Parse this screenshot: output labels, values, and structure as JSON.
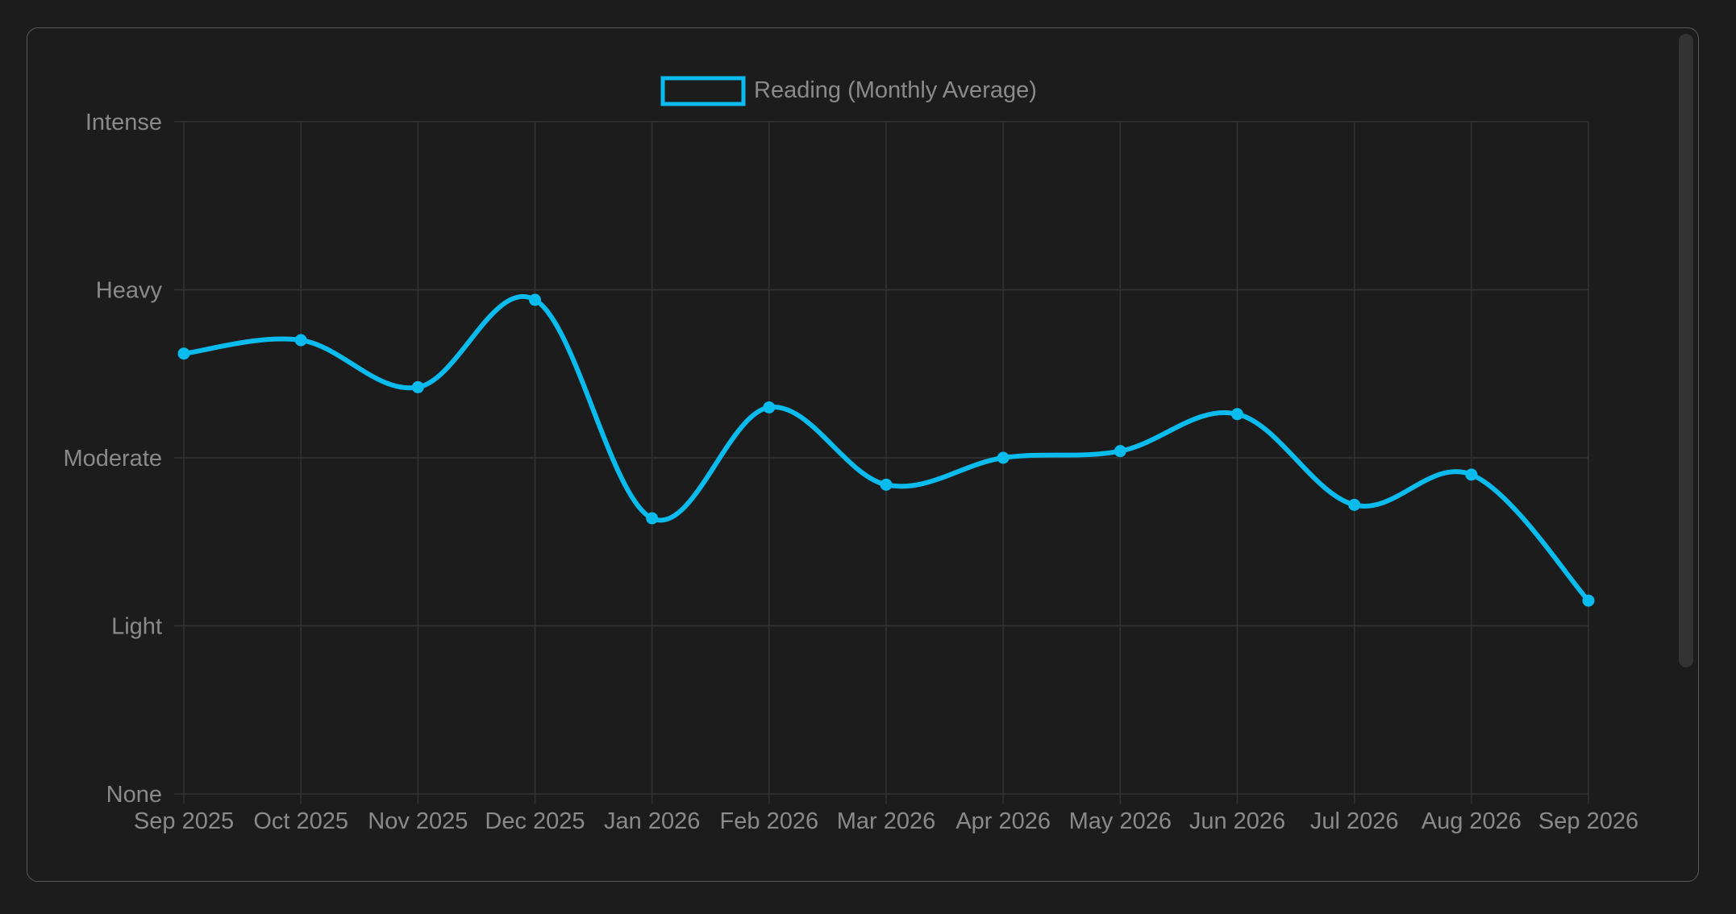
{
  "chart_data": {
    "type": "line",
    "categories": [
      "Sep 2025",
      "Oct 2025",
      "Nov 2025",
      "Dec 2025",
      "Jan 2026",
      "Feb 2026",
      "Mar 2026",
      "Apr 2026",
      "May 2026",
      "Jun 2026",
      "Jul 2026",
      "Aug 2026",
      "Sep 2026"
    ],
    "y_levels": [
      "None",
      "Light",
      "Moderate",
      "Heavy",
      "Intense"
    ],
    "ylim": [
      0,
      4
    ],
    "series": [
      {
        "name": "Reading (Monthly Average)",
        "color": "#0abcee",
        "values": [
          2.62,
          2.7,
          2.42,
          2.94,
          1.64,
          2.3,
          1.84,
          2.0,
          2.04,
          2.26,
          1.72,
          1.9,
          1.15
        ]
      }
    ],
    "grid": true,
    "legend_position": "top-center"
  }
}
